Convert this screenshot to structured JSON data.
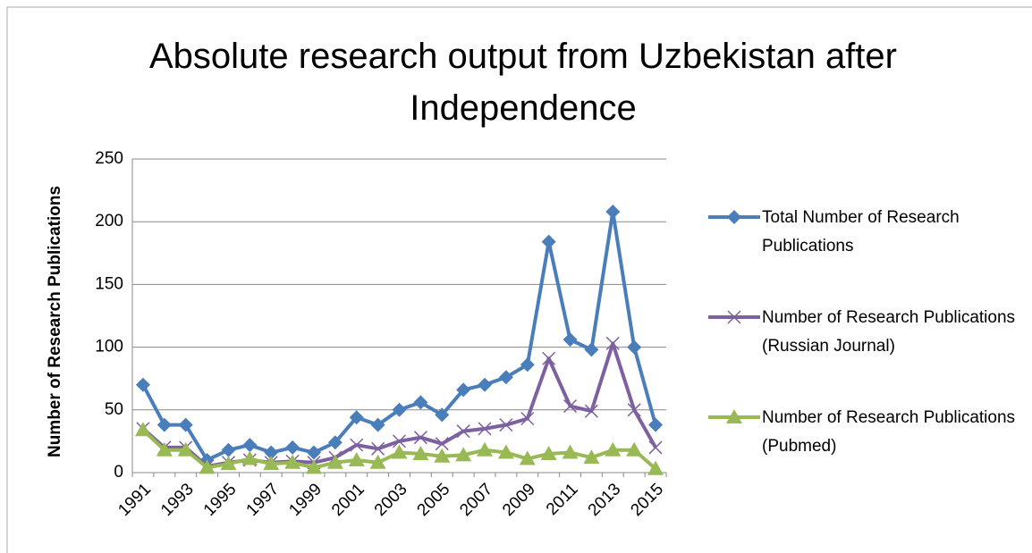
{
  "chart_data": {
    "type": "line",
    "title": "Absolute research output from Uzbekistan after Independence",
    "y_label": "Number of Research Publications",
    "categories": [
      "1991",
      null,
      "1993",
      null,
      "1995",
      null,
      "1997",
      null,
      "1999",
      null,
      "2001",
      null,
      "2003",
      null,
      "2005",
      null,
      "2007",
      null,
      "2009",
      null,
      "2011",
      null,
      "2013",
      null,
      "2015"
    ],
    "series": [
      {
        "name": "Total Number of Research Publications",
        "color": "#4a7ebb",
        "marker": "diamond",
        "values": [
          70,
          38,
          38,
          10,
          18,
          22,
          16,
          20,
          16,
          24,
          44,
          38,
          50,
          56,
          46,
          66,
          70,
          76,
          86,
          184,
          106,
          98,
          208,
          100,
          38
        ]
      },
      {
        "name": "Number of Research Publications (Russian Journal)",
        "color": "#7d60a0",
        "marker": "x",
        "values": [
          35,
          20,
          20,
          5,
          8,
          10,
          8,
          9,
          8,
          12,
          22,
          19,
          25,
          28,
          23,
          33,
          35,
          38,
          43,
          91,
          53,
          49,
          103,
          50,
          20
        ]
      },
      {
        "name": "Number of Research Publications (Pubmed)",
        "color": "#98b954",
        "marker": "triangle",
        "values": [
          34,
          18,
          18,
          4,
          7,
          11,
          7,
          8,
          4,
          8,
          10,
          8,
          16,
          15,
          13,
          14,
          18,
          16,
          11,
          15,
          16,
          12,
          18,
          18,
          3
        ]
      }
    ],
    "ylim": [
      0,
      250
    ],
    "yticks": [
      0,
      50,
      100,
      150,
      200,
      250
    ],
    "grid": true,
    "legend": "right"
  }
}
